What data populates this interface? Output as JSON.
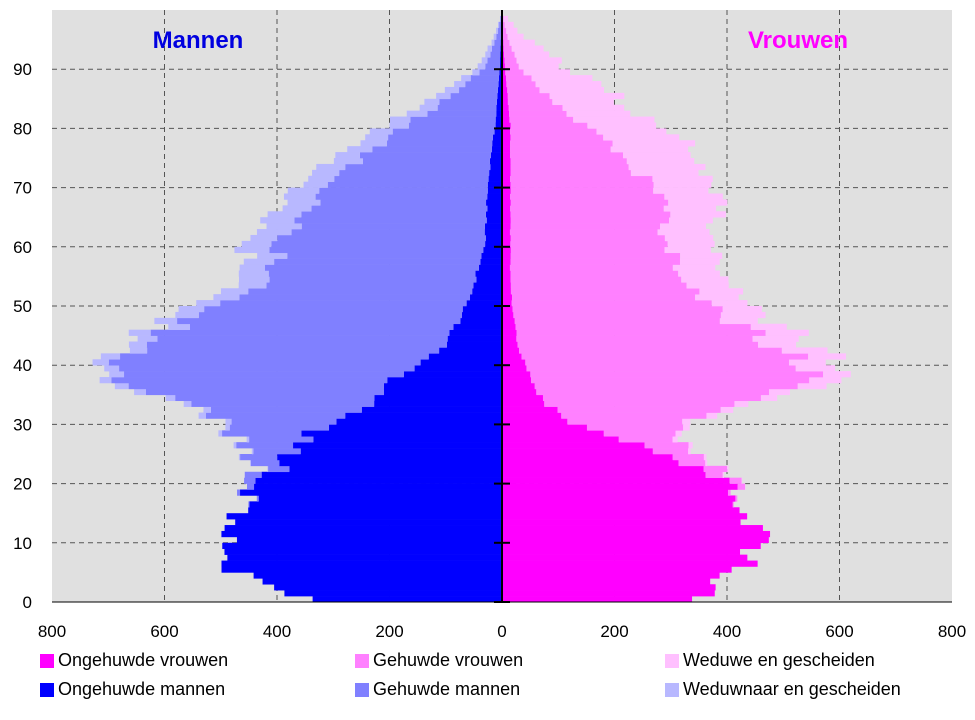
{
  "colors": {
    "plot_bg": "#E0E0E0",
    "grid": "#555555",
    "mannen_label": "#0000E0",
    "vrouwen_label": "#FF00FF"
  },
  "labels": {
    "mannen": "Mannen",
    "vrouwen": "Vrouwen"
  },
  "legend": [
    {
      "label": "Ongehuwde vrouwen",
      "color": "#FF00FF"
    },
    {
      "label": "Gehuwde vrouwen",
      "color": "#FF80FF"
    },
    {
      "label": "Weduwe en gescheiden",
      "color": "#FFC0FF"
    },
    {
      "label": "Ongehuwde mannen",
      "color": "#0000FF"
    },
    {
      "label": "Gehuwde mannen",
      "color": "#8080FF"
    },
    {
      "label": "Weduwnaar en gescheiden",
      "color": "#B8B8FF"
    }
  ],
  "chart_data": {
    "type": "bar",
    "orientation": "horizontal-population-pyramid",
    "x_ticks": [
      "800",
      "600",
      "400",
      "200",
      "0",
      "200",
      "400",
      "600",
      "800"
    ],
    "y_ticks": [
      "0",
      "10",
      "20",
      "30",
      "40",
      "50",
      "60",
      "70",
      "80",
      "90"
    ],
    "xlim": [
      -800,
      800
    ],
    "ylim": [
      0,
      99
    ],
    "grid": true,
    "legend_position": "bottom",
    "age_anchors": [
      0,
      5,
      10,
      13,
      15,
      18,
      20,
      22,
      25,
      28,
      30,
      33,
      35,
      38,
      40,
      42,
      45,
      50,
      55,
      60,
      65,
      70,
      75,
      80,
      85,
      90,
      95,
      99
    ],
    "male_single": [
      350,
      480,
      500,
      480,
      460,
      440,
      420,
      400,
      370,
      340,
      300,
      230,
      220,
      180,
      140,
      110,
      90,
      60,
      45,
      30,
      28,
      25,
      20,
      12,
      8,
      4,
      2,
      0
    ],
    "male_married": [
      0,
      0,
      0,
      0,
      0,
      5,
      20,
      40,
      80,
      140,
      200,
      330,
      410,
      500,
      560,
      550,
      500,
      430,
      360,
      360,
      320,
      280,
      220,
      160,
      80,
      25,
      8,
      0
    ],
    "male_widowed": [
      0,
      0,
      0,
      0,
      0,
      0,
      0,
      1,
      3,
      6,
      10,
      15,
      20,
      25,
      30,
      35,
      40,
      45,
      50,
      55,
      55,
      50,
      45,
      40,
      25,
      12,
      4,
      0
    ],
    "female_single": [
      350,
      420,
      470,
      450,
      430,
      410,
      390,
      340,
      270,
      180,
      120,
      80,
      60,
      50,
      40,
      30,
      25,
      18,
      15,
      15,
      15,
      15,
      15,
      15,
      10,
      5,
      2,
      0
    ],
    "female_married": [
      0,
      0,
      0,
      0,
      0,
      5,
      20,
      40,
      60,
      120,
      200,
      330,
      430,
      490,
      500,
      470,
      420,
      340,
      300,
      290,
      270,
      250,
      200,
      130,
      70,
      25,
      8,
      0
    ],
    "female_widowed": [
      0,
      0,
      0,
      0,
      0,
      0,
      1,
      3,
      5,
      10,
      15,
      25,
      40,
      55,
      70,
      75,
      70,
      70,
      75,
      80,
      90,
      110,
      130,
      140,
      120,
      80,
      30,
      0
    ]
  }
}
